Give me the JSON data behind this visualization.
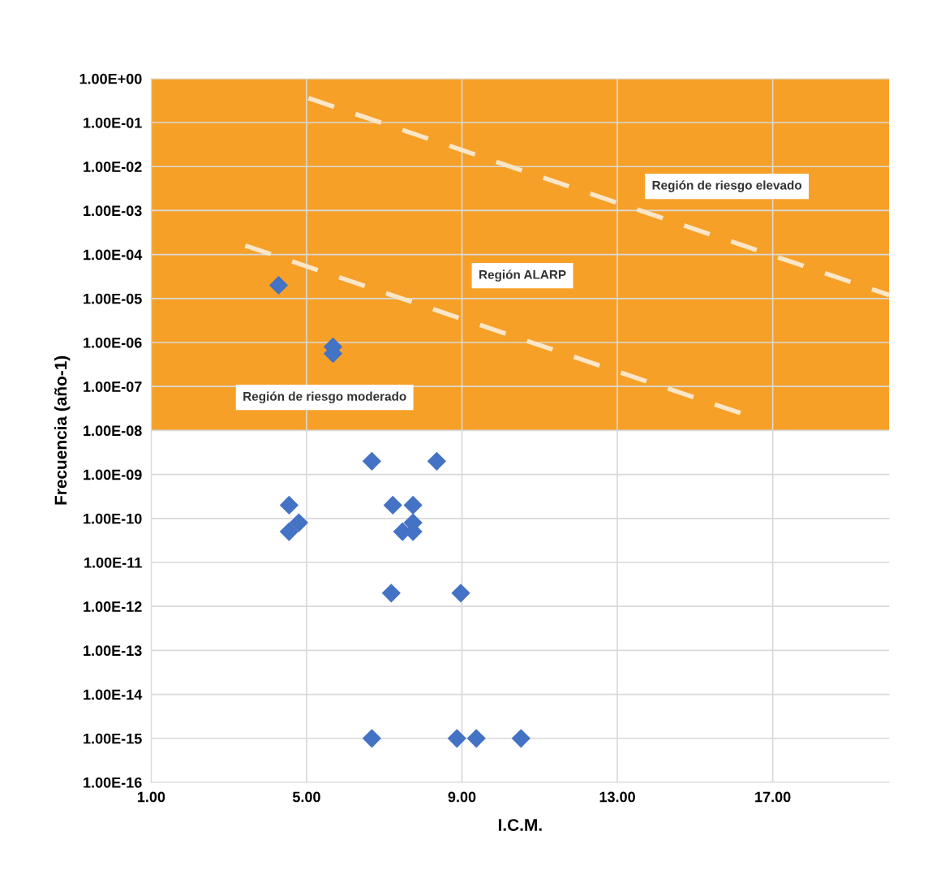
{
  "chart_data": {
    "type": "scatter",
    "xlabel": "I.C.M.",
    "ylabel": "Frecuencia (año-1)",
    "log": "y",
    "grid": true,
    "marker": "diamond",
    "xlim": [
      1,
      20
    ],
    "ylim": [
      1e-16,
      1
    ],
    "xticks": [
      {
        "value": 1,
        "label": "1.00"
      },
      {
        "value": 5,
        "label": "5.00"
      },
      {
        "value": 9,
        "label": "9.00"
      },
      {
        "value": 13,
        "label": "13.00"
      },
      {
        "value": 17,
        "label": "17.00"
      }
    ],
    "yticks": [
      {
        "value": 1e-16,
        "label": "1.00E-16"
      },
      {
        "value": 1e-15,
        "label": "1.00E-15"
      },
      {
        "value": 1e-14,
        "label": "1.00E-14"
      },
      {
        "value": 1e-13,
        "label": "1.00E-13"
      },
      {
        "value": 1e-12,
        "label": "1.00E-12"
      },
      {
        "value": 1e-11,
        "label": "1.00E-11"
      },
      {
        "value": 1e-10,
        "label": "1.00E-10"
      },
      {
        "value": 1e-09,
        "label": "1.00E-09"
      },
      {
        "value": 1e-08,
        "label": "1.00E-08"
      },
      {
        "value": 1e-07,
        "label": "1.00E-07"
      },
      {
        "value": 1e-06,
        "label": "1.00E-06"
      },
      {
        "value": 1e-05,
        "label": "1.00E-05"
      },
      {
        "value": 0.0001,
        "label": "1.00E-04"
      },
      {
        "value": 0.001,
        "label": "1.00E-03"
      },
      {
        "value": 0.01,
        "label": "1.00E-02"
      },
      {
        "value": 0.1,
        "label": "1.00E-01"
      },
      {
        "value": 1,
        "label": "1.00E+00"
      }
    ],
    "bands": [
      {
        "axis": "y",
        "from": 1e-08,
        "to": 1,
        "color": "#f6a028"
      }
    ],
    "annotations": [
      "Región de riesgo elevado",
      "Región ALARP",
      "Región de riesgo moderado"
    ],
    "series": [
      {
        "color": "#4472c4",
        "x": [
          4.28,
          5.68,
          5.68,
          6.68,
          8.35,
          4.55,
          4.55,
          4.8,
          7.22,
          7.74,
          7.47,
          7.74,
          7.74,
          7.18,
          8.97,
          6.68,
          8.87,
          9.37,
          10.52
        ],
        "values": [
          2e-05,
          8e-07,
          5.6e-07,
          2e-09,
          2e-09,
          2e-10,
          5e-11,
          8e-11,
          2e-10,
          2e-10,
          5e-11,
          5e-11,
          8e-11,
          2e-12,
          2e-12,
          1e-15,
          1e-15,
          1e-15,
          1e-15
        ]
      },
      {
        "type": "line",
        "color": "#fbe6c8",
        "line_style": "dashed",
        "marker": "none",
        "x": [
          5.05,
          20
        ],
        "values": [
          0.36,
          1.2e-05
        ]
      },
      {
        "type": "line",
        "color": "#fbe6c8",
        "line_style": "dashed",
        "marker": "none",
        "x": [
          3.42,
          16.28
        ],
        "values": [
          0.00016,
          2.3e-08
        ]
      }
    ]
  }
}
